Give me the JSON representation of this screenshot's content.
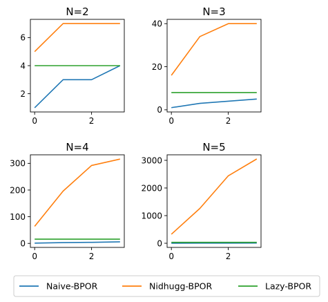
{
  "legend": {
    "items": [
      {
        "label": "Naive-BPOR",
        "color": "#1f77b4"
      },
      {
        "label": "Nidhugg-BPOR",
        "color": "#ff7f0e"
      },
      {
        "label": "Lazy-BPOR",
        "color": "#2ca02c"
      }
    ]
  },
  "chart_data": [
    {
      "type": "line",
      "title": "N=2",
      "x": [
        0,
        1,
        2,
        3
      ],
      "xticks": [
        "0",
        "2"
      ],
      "yticks": [
        "2",
        "4",
        "6"
      ],
      "xlim": [
        -0.15,
        3.15
      ],
      "ylim": [
        0.7,
        7.3
      ],
      "series": [
        {
          "name": "Naive-BPOR",
          "values": [
            1,
            3,
            3,
            4
          ]
        },
        {
          "name": "Nidhugg-BPOR",
          "values": [
            5,
            7,
            7,
            7
          ]
        },
        {
          "name": "Lazy-BPOR",
          "values": [
            4,
            4,
            4,
            4
          ]
        }
      ]
    },
    {
      "type": "line",
      "title": "N=3",
      "x": [
        0,
        1,
        2,
        3
      ],
      "xticks": [
        "0",
        "2"
      ],
      "yticks": [
        "0",
        "20",
        "40"
      ],
      "xlim": [
        -0.15,
        3.15
      ],
      "ylim": [
        -1,
        42
      ],
      "series": [
        {
          "name": "Naive-BPOR",
          "values": [
            1,
            3,
            4,
            5
          ]
        },
        {
          "name": "Nidhugg-BPOR",
          "values": [
            16,
            34,
            40,
            40
          ]
        },
        {
          "name": "Lazy-BPOR",
          "values": [
            8,
            8,
            8,
            8
          ]
        }
      ]
    },
    {
      "type": "line",
      "title": "N=4",
      "x": [
        0,
        1,
        2,
        3
      ],
      "xticks": [
        "0",
        "2"
      ],
      "yticks": [
        "0",
        "100",
        "200",
        "300"
      ],
      "xlim": [
        -0.15,
        3.15
      ],
      "ylim": [
        -15,
        332
      ],
      "series": [
        {
          "name": "Naive-BPOR",
          "values": [
            1,
            3,
            4,
            6
          ]
        },
        {
          "name": "Nidhugg-BPOR",
          "values": [
            64,
            196,
            292,
            316
          ]
        },
        {
          "name": "Lazy-BPOR",
          "values": [
            16,
            16,
            16,
            16
          ]
        }
      ]
    },
    {
      "type": "line",
      "title": "N=5",
      "x": [
        0,
        1,
        2,
        3
      ],
      "xticks": [
        "0",
        "2"
      ],
      "yticks": [
        "0",
        "1000",
        "2000",
        "3000"
      ],
      "xlim": [
        -0.15,
        3.15
      ],
      "ylim": [
        -150,
        3200
      ],
      "series": [
        {
          "name": "Naive-BPOR",
          "values": [
            1,
            3,
            4,
            6
          ]
        },
        {
          "name": "Nidhugg-BPOR",
          "values": [
            326,
            1260,
            2440,
            3050
          ]
        },
        {
          "name": "Lazy-BPOR",
          "values": [
            32,
            32,
            32,
            32
          ]
        }
      ]
    }
  ]
}
